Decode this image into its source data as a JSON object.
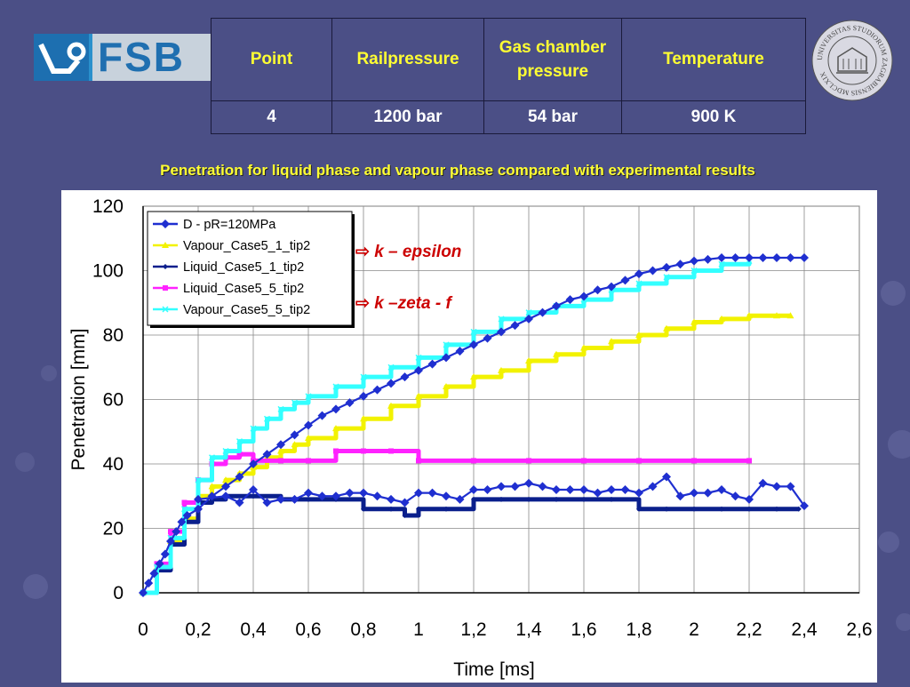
{
  "slide": {
    "logo_text": "FSB",
    "seal_text": "UNIVERSITAS STUDIORUM ZAGRABIENSIS MDCLXIX",
    "subtitle": "Penetration for liquid phase and vapour phase compared with experimental  results",
    "notes": [
      "k – epsilon",
      "k –zeta - f"
    ]
  },
  "params_table": {
    "headers": [
      "Point",
      "Railpressure",
      "Gas chamber pressure",
      "Temperature"
    ],
    "values": [
      "4",
      "1200 bar",
      "54 bar",
      "900 K"
    ]
  },
  "chart_data": {
    "type": "line",
    "xlabel": "Time [ms]",
    "ylabel": "Penetration [mm]",
    "xlim": [
      0,
      2.6
    ],
    "ylim": [
      0,
      120
    ],
    "x_ticks": [
      "0",
      "0,2",
      "0,4",
      "0,6",
      "0,8",
      "1",
      "1,2",
      "1,4",
      "1,6",
      "1,8",
      "2",
      "2,2",
      "2,4",
      "2,6"
    ],
    "y_ticks": [
      "0",
      "20",
      "40",
      "60",
      "80",
      "100",
      "120"
    ],
    "grid": true,
    "legend_position": "top-left",
    "series": [
      {
        "name": "D - pR=120MPa",
        "color": "#1f2fd0",
        "marker": "diamond",
        "style": "line",
        "x": [
          0,
          0.02,
          0.04,
          0.06,
          0.08,
          0.1,
          0.12,
          0.14,
          0.16,
          0.2,
          0.25,
          0.3,
          0.35,
          0.4,
          0.45,
          0.5,
          0.55,
          0.6,
          0.65,
          0.7,
          0.75,
          0.8,
          0.85,
          0.9,
          0.95,
          1,
          1.05,
          1.1,
          1.15,
          1.2,
          1.25,
          1.3,
          1.35,
          1.4,
          1.45,
          1.5,
          1.55,
          1.6,
          1.65,
          1.7,
          1.75,
          1.8,
          1.85,
          1.9,
          1.95,
          2,
          2.05,
          2.1,
          2.15,
          2.2,
          2.25,
          2.3,
          2.35,
          2.4
        ],
        "y": [
          0,
          3,
          6,
          9,
          12,
          16,
          19,
          22,
          24,
          26,
          30,
          33,
          36,
          40,
          43,
          46,
          49,
          52,
          55,
          57,
          59,
          61,
          63,
          65,
          67,
          69,
          71,
          73,
          75,
          77,
          79,
          81,
          83,
          85,
          87,
          89,
          91,
          92,
          94,
          95,
          97,
          99,
          100,
          101,
          102,
          103,
          103.5,
          104,
          104,
          104,
          104,
          104,
          104,
          104
        ]
      },
      {
        "name": "Vapour_Case5_1_tip2",
        "color": "#f2f200",
        "marker": "triangle",
        "style": "step",
        "x": [
          0,
          0.05,
          0.1,
          0.15,
          0.2,
          0.25,
          0.3,
          0.35,
          0.4,
          0.45,
          0.5,
          0.55,
          0.6,
          0.7,
          0.8,
          0.9,
          1,
          1.1,
          1.2,
          1.3,
          1.4,
          1.5,
          1.6,
          1.7,
          1.8,
          1.9,
          2,
          2.1,
          2.2,
          2.3,
          2.35
        ],
        "y": [
          0,
          8,
          16,
          23,
          30,
          33,
          35,
          37,
          39,
          42,
          44,
          46,
          48,
          51,
          54,
          58,
          61,
          64,
          67,
          69,
          72,
          74,
          76,
          78,
          80,
          82,
          84,
          85,
          86,
          86,
          86
        ]
      },
      {
        "name": "Liquid_Case5_1_tip2",
        "color": "#0a1f8c",
        "marker": "diamond-small",
        "style": "step",
        "x": [
          0,
          0.05,
          0.1,
          0.15,
          0.2,
          0.25,
          0.3,
          0.4,
          0.5,
          0.6,
          0.7,
          0.8,
          0.9,
          0.95,
          1,
          1.1,
          1.2,
          1.3,
          1.4,
          1.5,
          1.6,
          1.7,
          1.8,
          1.9,
          2,
          2.1,
          2.2,
          2.3,
          2.38
        ],
        "y": [
          0,
          7,
          15,
          22,
          28,
          29,
          30,
          30,
          29,
          29,
          29,
          26,
          26,
          24,
          26,
          26,
          29,
          29,
          29,
          29,
          29,
          29,
          26,
          26,
          26,
          26,
          26,
          26,
          26
        ]
      },
      {
        "name": "Liquid_Case5_5_tip2",
        "color": "#ff22ff",
        "marker": "square",
        "style": "step",
        "x": [
          0,
          0.05,
          0.1,
          0.15,
          0.2,
          0.25,
          0.3,
          0.35,
          0.4,
          0.5,
          0.6,
          0.7,
          0.8,
          0.9,
          1,
          1.2,
          1.4,
          1.6,
          1.8,
          2,
          2.2
        ],
        "y": [
          0,
          9,
          19,
          28,
          35,
          40,
          42,
          43,
          41,
          41,
          41,
          44,
          44,
          44,
          41,
          41,
          41,
          41,
          41,
          41,
          41
        ]
      },
      {
        "name": "Vapour_Case5_5_tip2",
        "color": "#33ffff",
        "marker": "x",
        "style": "step",
        "x": [
          0,
          0.05,
          0.1,
          0.15,
          0.2,
          0.25,
          0.3,
          0.35,
          0.4,
          0.45,
          0.5,
          0.55,
          0.6,
          0.7,
          0.8,
          0.9,
          1,
          1.1,
          1.2,
          1.3,
          1.4,
          1.5,
          1.6,
          1.7,
          1.8,
          1.9,
          2,
          2.1,
          2.2
        ],
        "y": [
          0,
          8,
          17,
          26,
          35,
          42,
          44,
          47,
          51,
          54,
          57,
          59,
          61,
          64,
          67,
          70,
          73,
          77,
          81,
          85,
          87,
          89,
          91,
          94,
          96,
          98,
          100,
          102,
          103
        ]
      },
      {
        "name": "",
        "color": "#1f2fd0",
        "marker": "diamond",
        "style": "line",
        "x": [
          0.2,
          0.3,
          0.35,
          0.4,
          0.45,
          0.5,
          0.55,
          0.6,
          0.65,
          0.7,
          0.75,
          0.8,
          0.85,
          0.9,
          0.95,
          1,
          1.05,
          1.1,
          1.15,
          1.2,
          1.25,
          1.3,
          1.35,
          1.4,
          1.45,
          1.5,
          1.55,
          1.6,
          1.65,
          1.7,
          1.75,
          1.8,
          1.85,
          1.9,
          1.95,
          2,
          2.05,
          2.1,
          2.15,
          2.2,
          2.25,
          2.3,
          2.35,
          2.4
        ],
        "y": [
          29,
          30,
          28,
          32,
          28,
          29,
          29,
          31,
          30,
          30,
          31,
          31,
          30,
          29,
          28,
          31,
          31,
          30,
          29,
          32,
          32,
          33,
          33,
          34,
          33,
          32,
          32,
          32,
          31,
          32,
          32,
          31,
          33,
          36,
          30,
          31,
          31,
          32,
          30,
          29,
          34,
          33,
          33,
          27
        ]
      }
    ]
  }
}
